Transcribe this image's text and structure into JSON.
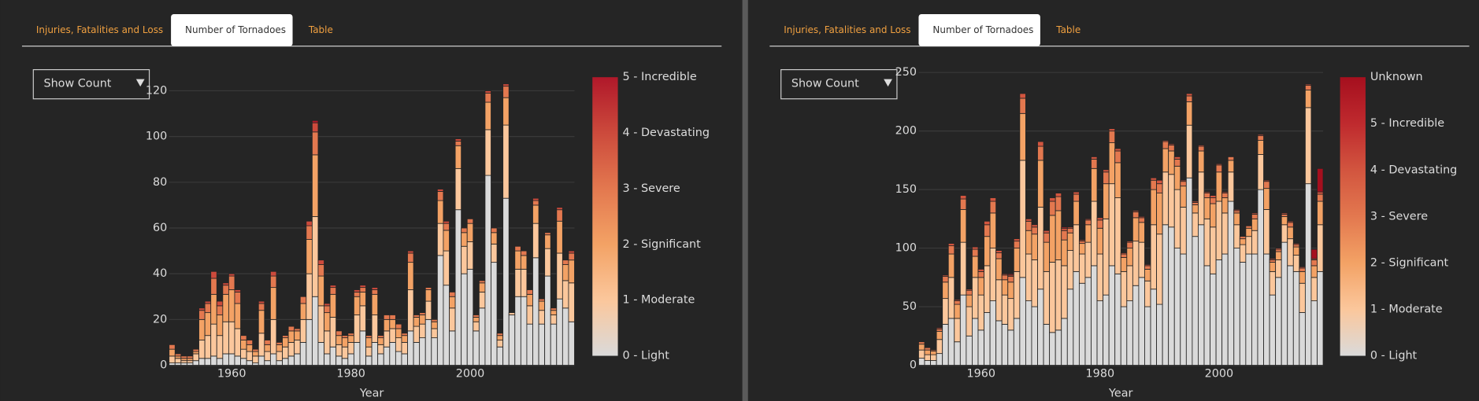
{
  "panels": [
    {
      "tabs": [
        "Injuries, Fatalities and Loss",
        "Number of Tornadoes",
        "Table"
      ],
      "active_tab": 1,
      "dropdown": "Show Count"
    },
    {
      "tabs": [
        "Injuries, Fatalities and Loss",
        "Number of Tornadoes",
        "Table"
      ],
      "active_tab": 1,
      "dropdown": "Show Count"
    }
  ],
  "chart_data": [
    {
      "type": "stacked_bar",
      "x_label": "Year",
      "x": [
        1950,
        1951,
        1952,
        1953,
        1954,
        1955,
        1956,
        1957,
        1958,
        1959,
        1960,
        1961,
        1962,
        1963,
        1964,
        1965,
        1966,
        1967,
        1968,
        1969,
        1970,
        1971,
        1972,
        1973,
        1974,
        1975,
        1976,
        1977,
        1978,
        1979,
        1980,
        1981,
        1982,
        1983,
        1984,
        1985,
        1986,
        1987,
        1988,
        1989,
        1990,
        1991,
        1992,
        1993,
        1994,
        1995,
        1996,
        1997,
        1998,
        1999,
        2000,
        2001,
        2002,
        2003,
        2004,
        2005,
        2006,
        2007,
        2008,
        2009,
        2010,
        2011,
        2012,
        2013,
        2014,
        2015,
        2016,
        2017
      ],
      "xlim": [
        1949.5,
        2017.5
      ],
      "xticks": [
        1960,
        1980,
        2000
      ],
      "ylim": [
        0,
        128
      ],
      "yticks": [
        0,
        20,
        40,
        60,
        80,
        100,
        120
      ],
      "grid": true,
      "series": [
        {
          "name": "0 - Light",
          "color": "#dadada",
          "values": [
            1,
            1,
            1,
            1,
            2,
            3,
            3,
            4,
            3,
            5,
            5,
            4,
            3,
            2,
            1,
            4,
            2,
            5,
            2,
            3,
            4,
            5,
            10,
            20,
            30,
            10,
            5,
            8,
            4,
            3,
            5,
            10,
            15,
            4,
            10,
            5,
            8,
            10,
            6,
            5,
            15,
            10,
            12,
            20,
            12,
            48,
            35,
            15,
            68,
            40,
            42,
            15,
            25,
            83,
            45,
            8,
            73,
            22,
            30,
            30,
            18,
            47,
            18,
            39,
            18,
            29,
            25,
            19
          ]
        },
        {
          "name": "1 - Moderate",
          "color": "#fbc79c",
          "values": [
            3,
            2,
            1,
            1,
            3,
            8,
            10,
            14,
            10,
            14,
            14,
            12,
            4,
            4,
            3,
            10,
            4,
            15,
            4,
            5,
            6,
            6,
            10,
            20,
            35,
            16,
            10,
            13,
            5,
            5,
            5,
            12,
            11,
            4,
            12,
            4,
            7,
            6,
            6,
            5,
            18,
            7,
            6,
            8,
            4,
            14,
            15,
            10,
            18,
            12,
            12,
            4,
            7,
            20,
            8,
            3,
            32,
            1,
            12,
            12,
            8,
            15,
            6,
            12,
            4,
            20,
            12,
            17
          ]
        },
        {
          "name": "2 - Significant",
          "color": "#f3a265",
          "values": [
            3,
            1,
            1,
            1,
            1,
            9,
            10,
            13,
            9,
            12,
            14,
            11,
            4,
            3,
            2,
            10,
            3,
            14,
            3,
            4,
            5,
            4,
            7,
            15,
            27,
            13,
            8,
            10,
            4,
            4,
            3,
            8,
            6,
            4,
            9,
            3,
            5,
            4,
            4,
            3,
            12,
            4,
            4,
            5,
            3,
            10,
            9,
            5,
            10,
            6,
            8,
            2,
            4,
            12,
            5,
            2,
            12,
            0,
            8,
            6,
            5,
            8,
            4,
            6,
            2,
            14,
            7,
            10
          ]
        },
        {
          "name": "3 - Severe",
          "color": "#e3784f",
          "values": [
            2,
            1,
            1,
            1,
            1,
            4,
            4,
            7,
            4,
            4,
            6,
            5,
            2,
            2,
            1,
            3,
            2,
            5,
            1,
            1,
            2,
            1,
            3,
            6,
            10,
            5,
            3,
            3,
            2,
            1,
            1,
            2,
            2,
            1,
            2,
            1,
            2,
            2,
            2,
            1,
            4,
            1,
            1,
            1,
            1,
            4,
            3,
            2,
            2,
            2,
            2,
            1,
            1,
            4,
            2,
            1,
            5,
            0,
            2,
            2,
            2,
            2,
            1,
            1,
            1,
            5,
            2,
            3
          ]
        },
        {
          "name": "4 - Devastating",
          "color": "#cc4a3c",
          "values": [
            0,
            0,
            0,
            0,
            0,
            1,
            1,
            3,
            2,
            1,
            1,
            1,
            0,
            0,
            0,
            1,
            0,
            2,
            0,
            0,
            0,
            0,
            0,
            2,
            4,
            2,
            1,
            1,
            0,
            0,
            0,
            1,
            1,
            0,
            1,
            0,
            0,
            0,
            0,
            0,
            1,
            0,
            0,
            0,
            0,
            1,
            1,
            0,
            1,
            0,
            0,
            0,
            0,
            1,
            0,
            0,
            1,
            0,
            0,
            0,
            0,
            1,
            0,
            0,
            0,
            1,
            0,
            1
          ]
        },
        {
          "name": "5 - Incredible",
          "color": "#b0182a",
          "values": [
            0,
            0,
            0,
            0,
            0,
            0,
            0,
            0,
            0,
            0,
            0,
            0,
            0,
            0,
            0,
            0,
            0,
            0,
            0,
            0,
            0,
            0,
            0,
            0,
            1,
            0,
            0,
            0,
            0,
            0,
            0,
            0,
            0,
            0,
            0,
            0,
            0,
            0,
            0,
            0,
            0,
            0,
            0,
            0,
            0,
            0,
            0,
            0,
            0,
            0,
            0,
            0,
            0,
            0,
            0,
            0,
            0,
            0,
            0,
            0,
            0,
            0,
            0,
            0,
            0,
            0,
            0,
            0
          ]
        }
      ]
    },
    {
      "type": "stacked_bar",
      "x_label": "Year",
      "x": [
        1950,
        1951,
        1952,
        1953,
        1954,
        1955,
        1956,
        1957,
        1958,
        1959,
        1960,
        1961,
        1962,
        1963,
        1964,
        1965,
        1966,
        1967,
        1968,
        1969,
        1970,
        1971,
        1972,
        1973,
        1974,
        1975,
        1976,
        1977,
        1978,
        1979,
        1980,
        1981,
        1982,
        1983,
        1984,
        1985,
        1986,
        1987,
        1988,
        1989,
        1990,
        1991,
        1992,
        1993,
        1994,
        1995,
        1996,
        1997,
        1998,
        1999,
        2000,
        2001,
        2002,
        2003,
        2004,
        2005,
        2006,
        2007,
        2008,
        2009,
        2010,
        2011,
        2012,
        2013,
        2014,
        2015,
        2016,
        2017
      ],
      "xlim": [
        1949.5,
        2017.5
      ],
      "xticks": [
        1960,
        1980,
        2000
      ],
      "ylim": [
        0,
        250
      ],
      "yticks": [
        0,
        50,
        100,
        150,
        200,
        250
      ],
      "grid": true,
      "series": [
        {
          "name": "0 - Light",
          "color": "#dadada",
          "values": [
            6,
            4,
            4,
            10,
            35,
            40,
            20,
            60,
            25,
            40,
            30,
            45,
            55,
            38,
            35,
            30,
            40,
            75,
            55,
            50,
            65,
            35,
            28,
            30,
            40,
            65,
            80,
            70,
            75,
            85,
            55,
            60,
            85,
            78,
            50,
            55,
            68,
            75,
            50,
            65,
            52,
            120,
            118,
            100,
            95,
            160,
            110,
            120,
            85,
            78,
            90,
            95,
            140,
            100,
            88,
            95,
            95,
            150,
            95,
            60,
            75,
            105,
            85,
            80,
            45,
            155,
            55,
            80
          ]
        },
        {
          "name": "1 - Moderate",
          "color": "#fbc79c",
          "values": [
            7,
            5,
            5,
            12,
            22,
            35,
            20,
            45,
            25,
            35,
            30,
            40,
            45,
            35,
            25,
            27,
            40,
            100,
            40,
            40,
            70,
            45,
            60,
            60,
            45,
            33,
            40,
            25,
            30,
            55,
            40,
            65,
            70,
            65,
            30,
            30,
            38,
            30,
            22,
            55,
            60,
            45,
            45,
            50,
            40,
            45,
            20,
            45,
            40,
            40,
            50,
            35,
            25,
            20,
            15,
            15,
            20,
            30,
            38,
            20,
            15,
            15,
            23,
            14,
            25,
            65,
            20,
            40
          ]
        },
        {
          "name": "2 - Significant",
          "color": "#f3a265",
          "values": [
            5,
            4,
            3,
            7,
            14,
            20,
            12,
            28,
            10,
            18,
            15,
            25,
            30,
            18,
            13,
            14,
            20,
            40,
            20,
            22,
            40,
            25,
            40,
            42,
            22,
            15,
            20,
            9,
            15,
            28,
            22,
            30,
            35,
            30,
            12,
            15,
            20,
            17,
            10,
            30,
            35,
            20,
            20,
            20,
            18,
            20,
            7,
            18,
            18,
            20,
            25,
            13,
            10,
            10,
            5,
            7,
            10,
            12,
            18,
            8,
            7,
            7,
            10,
            7,
            10,
            15,
            10,
            20
          ]
        },
        {
          "name": "3 - Severe",
          "color": "#e3784f",
          "values": [
            2,
            2,
            1,
            2,
            5,
            7,
            3,
            9,
            4,
            6,
            5,
            10,
            10,
            5,
            4,
            5,
            6,
            13,
            8,
            6,
            12,
            8,
            12,
            12,
            8,
            4,
            6,
            2,
            4,
            8,
            7,
            10,
            10,
            10,
            3,
            5,
            5,
            4,
            3,
            8,
            8,
            6,
            5,
            6,
            4,
            5,
            2,
            4,
            4,
            5,
            6,
            4,
            3,
            2,
            2,
            2,
            4,
            4,
            6,
            2,
            2,
            2,
            4,
            2,
            3,
            4,
            5,
            6
          ]
        },
        {
          "name": "4 - Devastating",
          "color": "#d2553f",
          "values": [
            0,
            0,
            0,
            1,
            1,
            2,
            1,
            3,
            1,
            2,
            2,
            3,
            3,
            2,
            1,
            1,
            2,
            4,
            2,
            2,
            4,
            2,
            3,
            3,
            2,
            1,
            2,
            1,
            1,
            2,
            2,
            2,
            2,
            2,
            1,
            1,
            1,
            1,
            1,
            2,
            3,
            1,
            1,
            2,
            1,
            2,
            1,
            1,
            1,
            2,
            1,
            1,
            0,
            1,
            0,
            0,
            1,
            1,
            1,
            1,
            1,
            1,
            1,
            1,
            1,
            1,
            1,
            2
          ]
        },
        {
          "name": "5 - Incredible",
          "color": "#bf2a2e",
          "values": [
            0,
            0,
            0,
            0,
            0,
            0,
            0,
            0,
            0,
            0,
            0,
            0,
            0,
            0,
            0,
            1,
            0,
            0,
            0,
            0,
            0,
            0,
            0,
            0,
            1,
            0,
            0,
            0,
            0,
            0,
            0,
            0,
            0,
            0,
            0,
            0,
            0,
            0,
            0,
            0,
            0,
            0,
            0,
            0,
            0,
            0,
            0,
            0,
            0,
            0,
            0,
            0,
            0,
            0,
            0,
            0,
            0,
            0,
            0,
            0,
            0,
            0,
            0,
            0,
            0,
            0,
            0,
            0
          ]
        },
        {
          "name": "Unknown",
          "color": "#a50f1e",
          "values": [
            0,
            0,
            0,
            0,
            0,
            0,
            0,
            0,
            0,
            0,
            0,
            0,
            0,
            0,
            0,
            0,
            0,
            0,
            0,
            0,
            0,
            0,
            0,
            0,
            0,
            0,
            0,
            0,
            0,
            0,
            0,
            0,
            0,
            0,
            0,
            0,
            0,
            0,
            0,
            0,
            0,
            0,
            0,
            0,
            0,
            0,
            0,
            0,
            0,
            0,
            0,
            0,
            0,
            0,
            0,
            0,
            0,
            0,
            0,
            0,
            0,
            0,
            0,
            0,
            0,
            0,
            8,
            20
          ]
        }
      ]
    }
  ]
}
